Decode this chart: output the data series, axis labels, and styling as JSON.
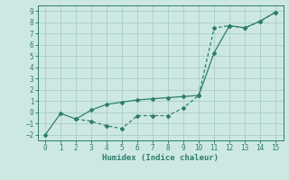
{
  "line1_x": [
    0,
    1,
    2,
    3,
    4,
    5,
    6,
    7,
    8,
    9,
    10,
    11,
    12,
    13,
    14,
    15
  ],
  "line1_y": [
    -2.0,
    -0.1,
    -0.6,
    0.2,
    0.7,
    0.9,
    1.1,
    1.2,
    1.3,
    1.4,
    1.5,
    5.3,
    7.7,
    7.5,
    8.1,
    8.9
  ],
  "line2_x": [
    2,
    3,
    4,
    5,
    6,
    7,
    8,
    9,
    10,
    11,
    12,
    13,
    14,
    15
  ],
  "line2_y": [
    -0.6,
    -0.8,
    -1.2,
    -1.45,
    -0.3,
    -0.3,
    -0.3,
    0.4,
    1.5,
    7.5,
    7.7,
    7.5,
    8.1,
    8.9
  ],
  "line_color": "#2e7d6e",
  "bg_color": "#cde8e3",
  "grid_color": "#aed0cb",
  "xlabel": "Humidex (Indice chaleur)",
  "xlim": [
    -0.5,
    15.5
  ],
  "ylim": [
    -2.5,
    9.5
  ],
  "xticks": [
    0,
    1,
    2,
    3,
    4,
    5,
    6,
    7,
    8,
    9,
    10,
    11,
    12,
    13,
    14,
    15
  ],
  "yticks": [
    -2,
    -1,
    0,
    1,
    2,
    3,
    4,
    5,
    6,
    7,
    8,
    9
  ],
  "xlabel_fontsize": 6.5,
  "tick_fontsize": 5.5
}
